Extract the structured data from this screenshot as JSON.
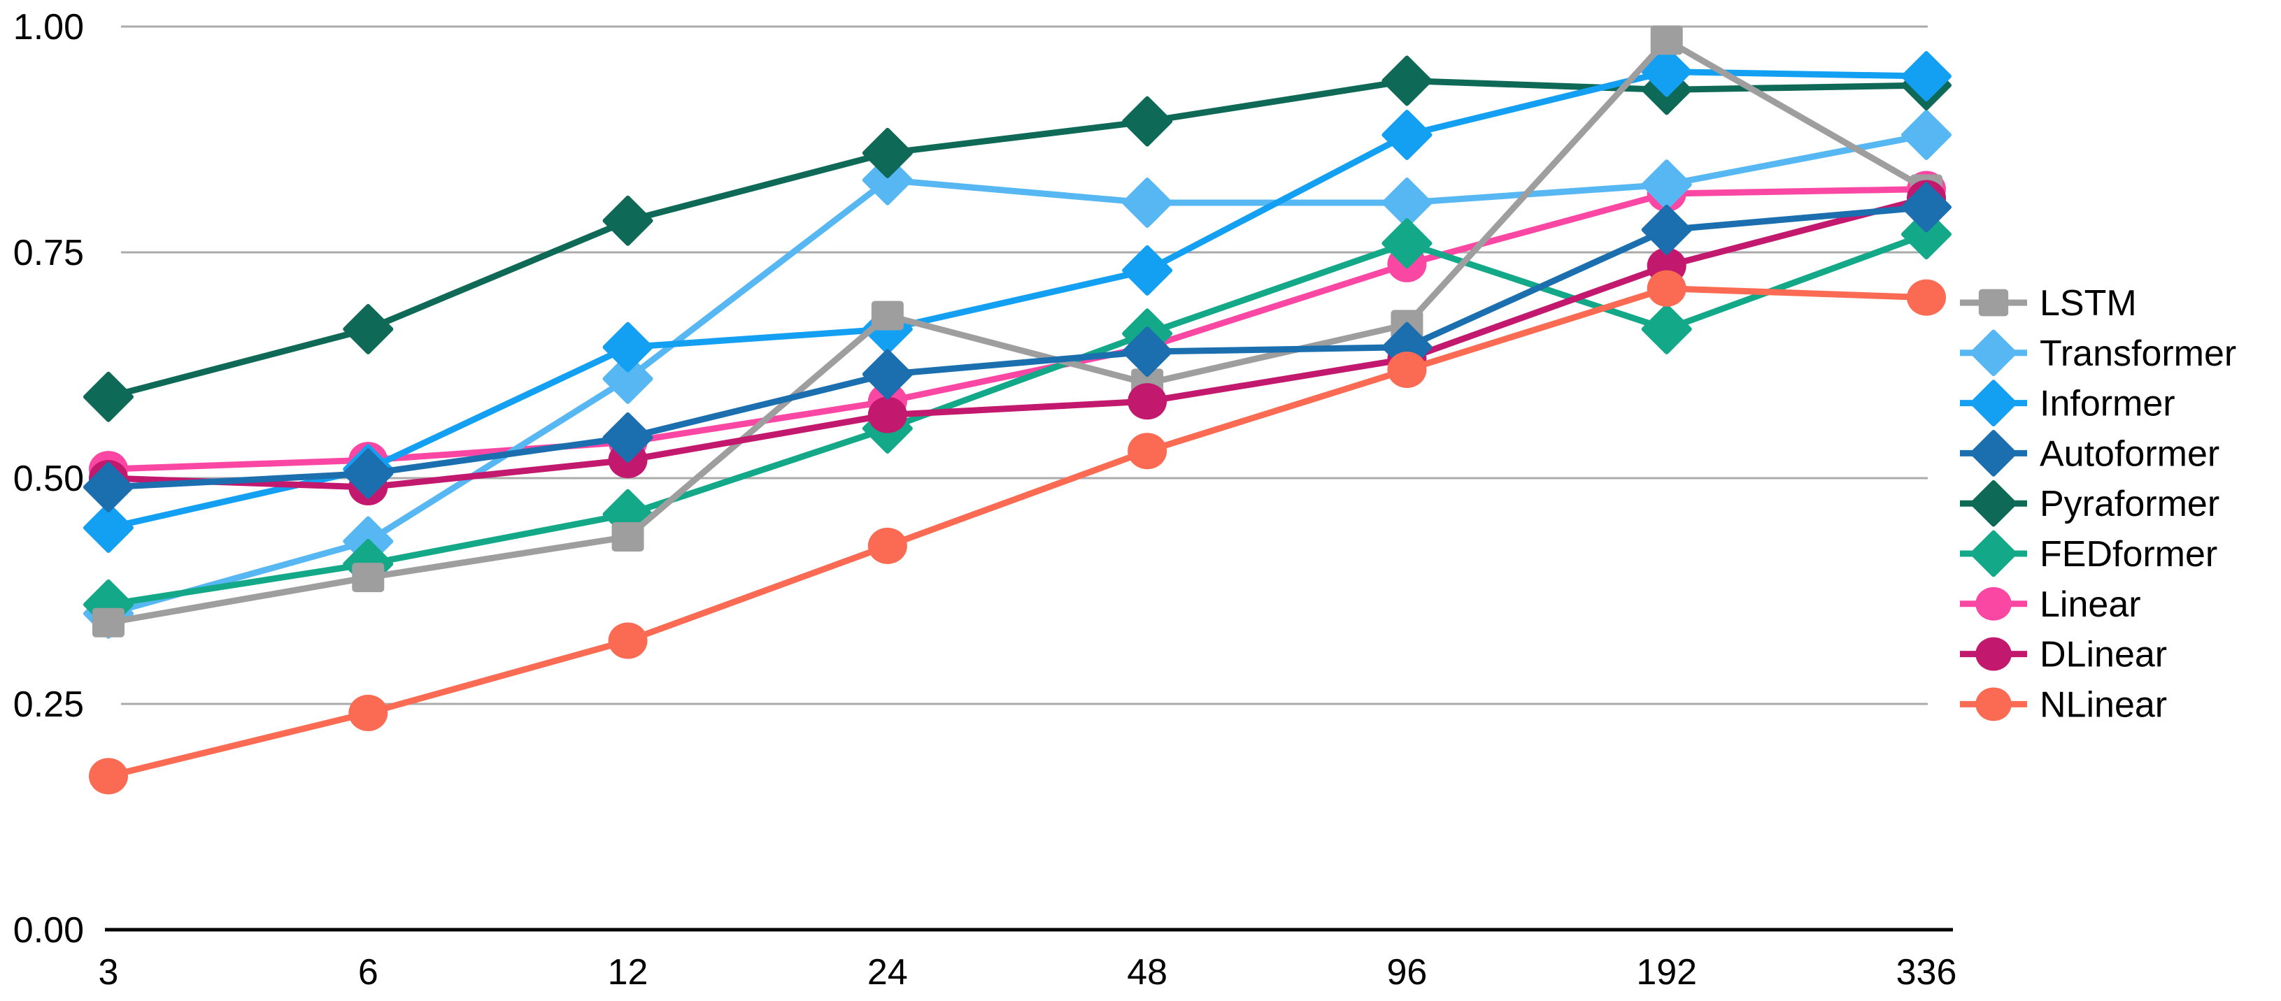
{
  "chart_data": {
    "type": "line",
    "title": "",
    "xlabel": "",
    "ylabel": "",
    "categories": [
      "3",
      "6",
      "12",
      "24",
      "48",
      "96",
      "192",
      "336"
    ],
    "y_ticks": [
      0,
      0.25,
      0.5,
      0.75,
      1.0
    ],
    "y_tick_labels": [
      "0.00",
      "0.25",
      "0.50",
      "0.75",
      "1.00"
    ],
    "ylim": [
      0.0,
      1.0
    ],
    "grid": "horizontal-only",
    "legend_position": "right",
    "series": [
      {
        "name": "LSTM",
        "color": "#9E9E9E",
        "marker": "square",
        "values": [
          0.34,
          0.39,
          0.435,
          0.68,
          0.605,
          0.67,
          0.985,
          0.82
        ]
      },
      {
        "name": "Transformer",
        "color": "#57B7F2",
        "marker": "diamond",
        "values": [
          0.35,
          0.43,
          0.61,
          0.83,
          0.805,
          0.805,
          0.825,
          0.88
        ]
      },
      {
        "name": "Informer",
        "color": "#14A0F2",
        "marker": "diamond",
        "values": [
          0.445,
          0.51,
          0.645,
          0.665,
          0.73,
          0.88,
          0.95,
          0.945
        ]
      },
      {
        "name": "Autoformer",
        "color": "#1B6FAE",
        "marker": "diamond",
        "values": [
          0.49,
          0.505,
          0.545,
          0.615,
          0.64,
          0.645,
          0.775,
          0.8
        ]
      },
      {
        "name": "Pyraformer",
        "color": "#0E6956",
        "marker": "diamond",
        "values": [
          0.59,
          0.665,
          0.785,
          0.86,
          0.895,
          0.94,
          0.93,
          0.935
        ]
      },
      {
        "name": "FEDformer",
        "color": "#13A888",
        "marker": "diamond",
        "values": [
          0.36,
          0.405,
          0.46,
          0.555,
          0.66,
          0.76,
          0.665,
          0.77
        ]
      },
      {
        "name": "Linear",
        "color": "#FB47A4",
        "marker": "circle",
        "values": [
          0.51,
          0.52,
          0.54,
          0.585,
          0.645,
          0.737,
          0.815,
          0.82
        ]
      },
      {
        "name": "DLinear",
        "color": "#C2186E",
        "marker": "circle",
        "values": [
          0.5,
          0.49,
          0.52,
          0.57,
          0.585,
          0.632,
          0.735,
          0.81
        ]
      },
      {
        "name": "NLinear",
        "color": "#FB6A52",
        "marker": "circle",
        "values": [
          0.17,
          0.24,
          0.32,
          0.425,
          0.53,
          0.62,
          0.71,
          0.7
        ]
      }
    ],
    "draw_order": [
      "Linear",
      "Transformer",
      "Pyraformer",
      "FEDformer",
      "Informer",
      "LSTM",
      "DLinear",
      "Autoformer",
      "NLinear"
    ]
  },
  "colors": {
    "background": "#FFFFFF",
    "gridline": "#ABABAB",
    "axis_line": "#000000",
    "tick_label": "#000000",
    "legend_text": "#000000"
  }
}
